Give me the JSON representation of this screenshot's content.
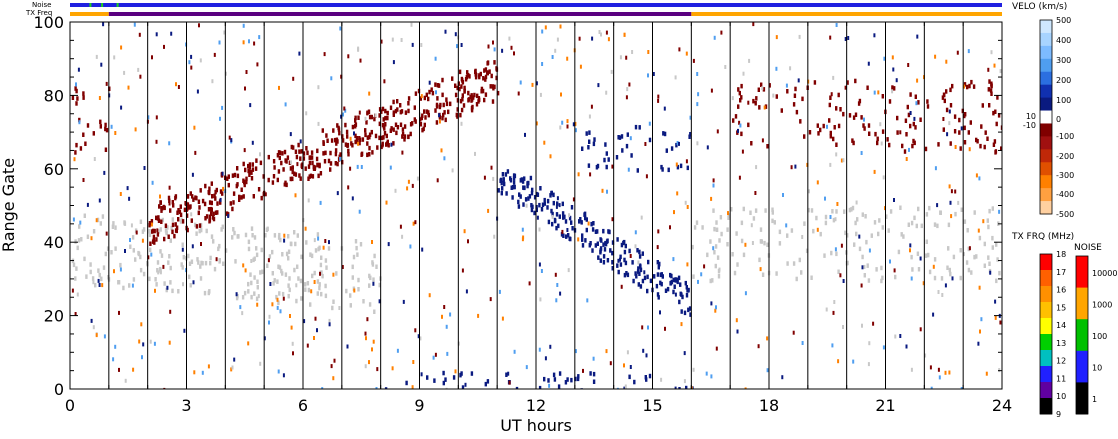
{
  "chart_data": {
    "type": "heatmap",
    "xlabel": "UT hours",
    "ylabel": "Range Gate",
    "xlim": [
      0,
      24
    ],
    "ylim": [
      0,
      100
    ],
    "x_ticks": [
      "0",
      "3",
      "6",
      "9",
      "12",
      "15",
      "18",
      "21",
      "24"
    ],
    "y_ticks": [
      "0",
      "20",
      "40",
      "60",
      "80",
      "100"
    ],
    "top_bars": [
      {
        "label": "Noise",
        "color": "#2020e0",
        "flecks": [
          0.5,
          0.8,
          1.2
        ],
        "fleck_color": "#20d020"
      },
      {
        "label": "TX Freq",
        "segments": [
          {
            "from": 0,
            "to": 1,
            "color": "#ffa500"
          },
          {
            "from": 1,
            "to": 16,
            "color": "#5a0080"
          },
          {
            "from": 16,
            "to": 24,
            "color": "#ffa500"
          }
        ]
      }
    ],
    "vertical_lines_hours": [
      1,
      2,
      3,
      4,
      5,
      6,
      7,
      8,
      9,
      10,
      11,
      12,
      13,
      14,
      15,
      16,
      17,
      18,
      19,
      20,
      21,
      22,
      23
    ],
    "velocity_colorbar": {
      "title": "VELO (km/s)",
      "labels": [
        "500",
        "400",
        "300",
        "200",
        "100",
        "10",
        "0",
        "-10",
        "-100",
        "-200",
        "-300",
        "-400",
        "-500"
      ],
      "colors": [
        "#cfe8ff",
        "#a8d4ff",
        "#7dbbff",
        "#4f9ef0",
        "#2b6fe0",
        "#1030b0",
        "#0a1a80",
        "#ffffff",
        "#800000",
        "#a01010",
        "#c02808",
        "#e05000",
        "#ff8000",
        "#ffa040",
        "#ffd0a0"
      ]
    },
    "txfreq_colorbar": {
      "title": "TX FRQ (MHz)",
      "labels": [
        "18",
        "17",
        "16",
        "15",
        "14",
        "13",
        "12",
        "11",
        "10",
        "9"
      ],
      "colors": [
        "#ff0000",
        "#ff6000",
        "#ff9000",
        "#ffc000",
        "#ffff00",
        "#00d000",
        "#00c0c0",
        "#2020ff",
        "#6000a0",
        "#000000"
      ]
    },
    "noise_colorbar": {
      "title": "NOISE",
      "labels": [
        "10000",
        "1000",
        "100",
        "10",
        "1"
      ],
      "colors": [
        "#ff0000",
        "#ffa500",
        "#00c000",
        "#2020ff",
        "#000000"
      ]
    },
    "scatter_regions": [
      {
        "name": "ground scatter early",
        "x": [
          0,
          8
        ],
        "y": [
          20,
          50
        ],
        "color": "#c8c8c8"
      },
      {
        "name": "ionospheric rising band",
        "x": [
          2,
          11
        ],
        "y": [
          40,
          90
        ],
        "color": "#800000"
      },
      {
        "name": "early patch",
        "x": [
          0,
          1
        ],
        "y": [
          65,
          85
        ],
        "color": "#800000"
      },
      {
        "name": "descending band",
        "x": [
          11,
          16
        ],
        "y": [
          20,
          60
        ],
        "color": "#0a1a80"
      },
      {
        "name": "upper blue band",
        "x": [
          13,
          16
        ],
        "y": [
          60,
          72
        ],
        "color": "#0a1a80"
      },
      {
        "name": "late ground scatter",
        "x": [
          16,
          24
        ],
        "y": [
          30,
          50
        ],
        "color": "#c8c8c8"
      },
      {
        "name": "late upper scatter",
        "x": [
          17,
          24
        ],
        "y": [
          65,
          85
        ],
        "color": "#800000"
      },
      {
        "name": "near range",
        "x": [
          8,
          16
        ],
        "y": [
          0,
          5
        ],
        "color": "#0a1a80"
      }
    ]
  }
}
